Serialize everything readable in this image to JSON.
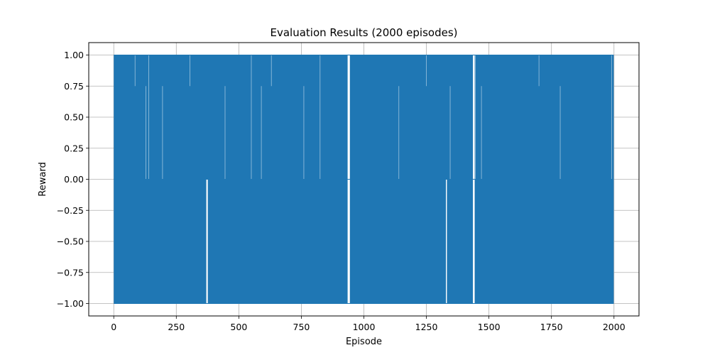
{
  "chart_data": {
    "type": "line",
    "title": "Evaluation Results (2000 episodes)",
    "xlabel": "Episode",
    "ylabel": "Reward",
    "xlim": [
      -100,
      2100
    ],
    "ylim": [
      -1.1,
      1.1
    ],
    "xticks": [
      0,
      250,
      500,
      750,
      1000,
      1250,
      1500,
      1750,
      2000
    ],
    "yticks": [
      1.0,
      0.75,
      0.5,
      0.25,
      0.0,
      -0.25,
      -0.5,
      -0.75,
      -1.0
    ],
    "xtick_labels": [
      "0",
      "250",
      "500",
      "750",
      "1000",
      "1250",
      "1500",
      "1750",
      "2000"
    ],
    "ytick_labels": [
      "1.00",
      "0.75",
      "0.50",
      "0.25",
      "0.00",
      "−0.25",
      "−0.50",
      "−0.75",
      "−1.00"
    ],
    "grid": true,
    "colors": {
      "series": "#1f77b4",
      "grid": "#b0b0b0"
    },
    "series": [
      {
        "x_start": 0,
        "x_end": 1999,
        "reward_levels": [
          -1,
          0,
          1
        ],
        "segments_all_wins": [
          [
            370,
            376
          ],
          [
            935,
            944
          ],
          [
            1328,
            1332
          ],
          [
            1436,
            1443
          ]
        ],
        "segments_no_losses": [
          [
            935,
            944
          ],
          [
            1436,
            1443
          ]
        ]
      }
    ]
  }
}
